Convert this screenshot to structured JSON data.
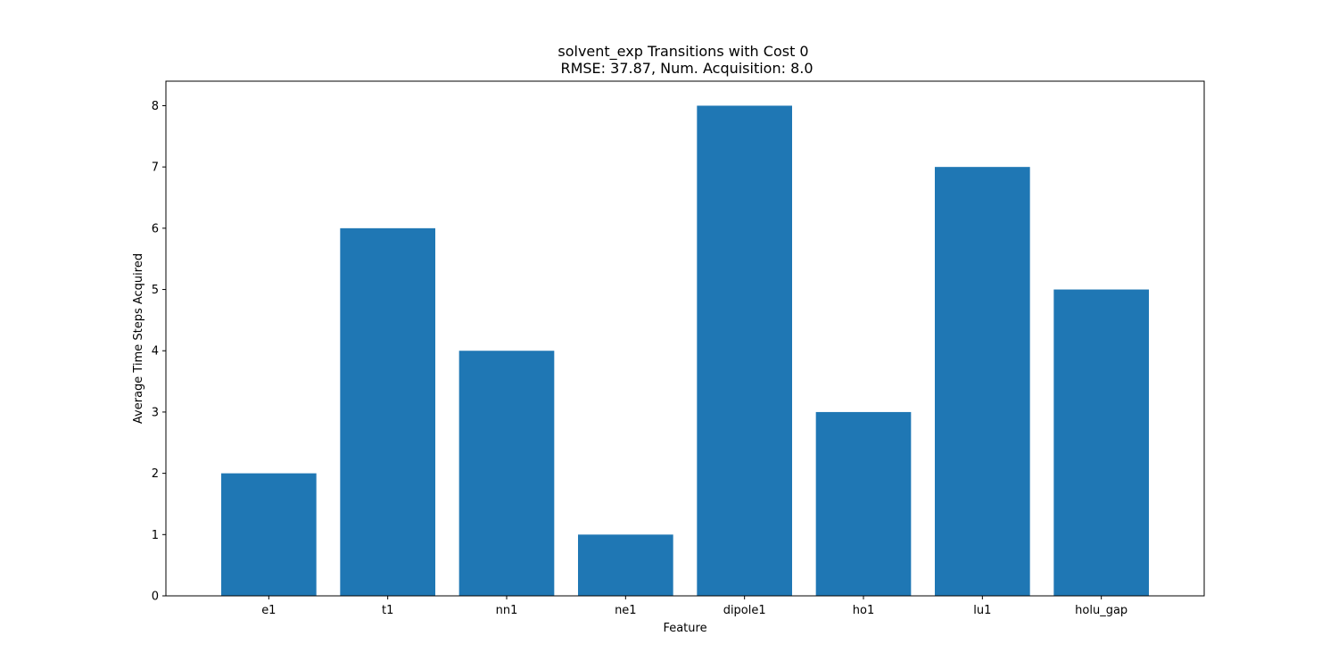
{
  "chart_data": {
    "type": "bar",
    "title": "solvent_exp Transitions with Cost 0",
    "subtitle": "RMSE: 37.87, Num. Acquisition: 8.0",
    "xlabel": "Feature",
    "ylabel": "Average Time Steps Acquired",
    "categories": [
      "e1",
      "t1",
      "nn1",
      "ne1",
      "dipole1",
      "ho1",
      "lu1",
      "holu_gap"
    ],
    "values": [
      2,
      6,
      4,
      1,
      8,
      3,
      7,
      5
    ],
    "ylim": [
      0,
      8.4
    ],
    "yticks": [
      0,
      1,
      2,
      3,
      4,
      5,
      6,
      7,
      8
    ],
    "bar_color": "#1f77b4",
    "grid": false,
    "legend": "none"
  }
}
